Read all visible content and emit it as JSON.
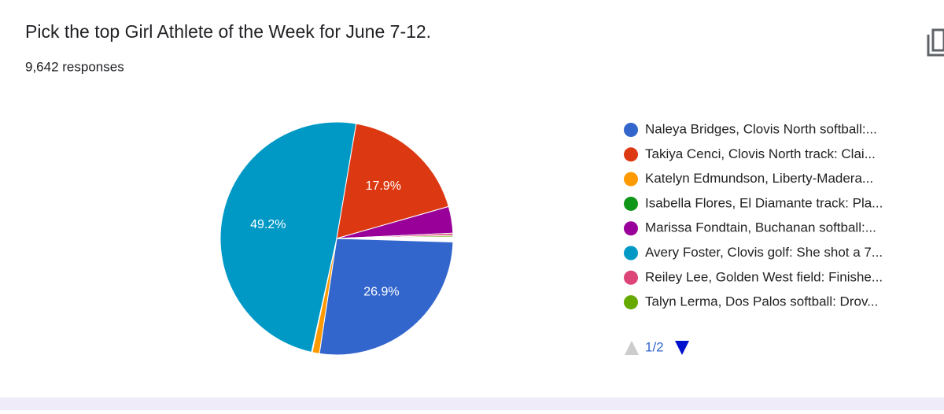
{
  "header": {
    "title": "Pick the top Girl Athlete of the Week for June 7-12.",
    "responses": "9,642 responses"
  },
  "chart_data": {
    "type": "pie",
    "categories": [
      "Naleya Bridges, Clovis North softball:...",
      "Takiya Cenci, Clovis North track: Clai...",
      "Katelyn Edmundson, Liberty-Madera...",
      "Isabella Flores, El Diamante track: Pla...",
      "Marissa Fondtain, Buchanan softball:...",
      "Avery Foster, Clovis golf: She shot a 7...",
      "Reiley Lee, Golden West field: Finishe...",
      "Talyn Lerma, Dos Palos softball: Drov..."
    ],
    "values": [
      26.9,
      17.9,
      1.0,
      0.1,
      3.7,
      49.2,
      0.3,
      0.2
    ],
    "value_labels": [
      "26.9%",
      "17.9%",
      null,
      null,
      null,
      "49.2%",
      null,
      null
    ],
    "colors": [
      "#3366cc",
      "#dc3912",
      "#ff9900",
      "#109618",
      "#990099",
      "#0099c6",
      "#dd4477",
      "#66aa00"
    ],
    "pager": "1/2"
  }
}
